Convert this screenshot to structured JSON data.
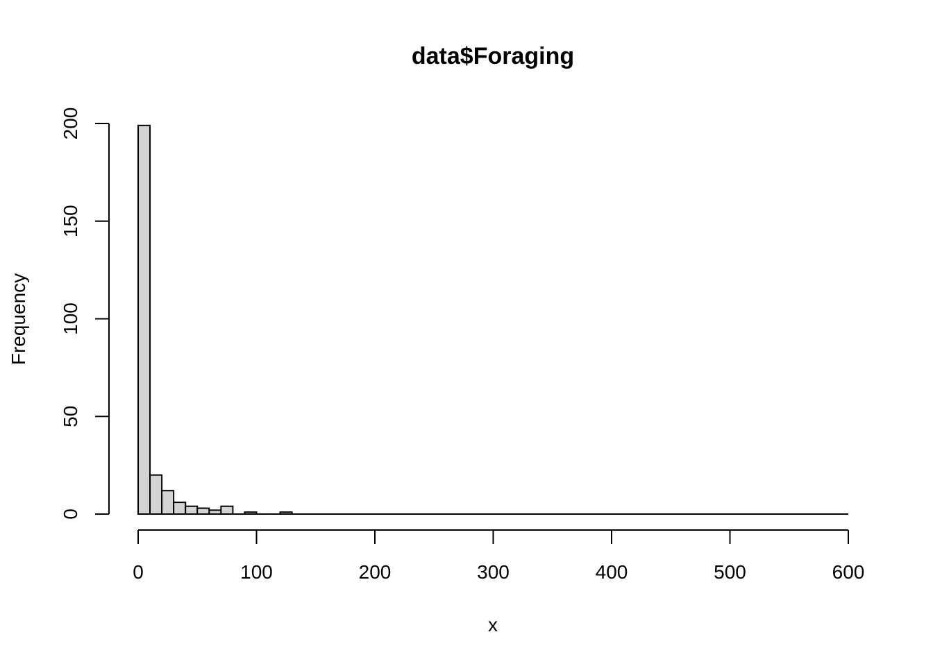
{
  "chart_data": {
    "type": "bar",
    "title": "data$Foraging",
    "xlabel": "x",
    "ylabel": "Frequency",
    "xlim": [
      0,
      600
    ],
    "ylim": [
      0,
      200
    ],
    "x_ticks": [
      0,
      100,
      200,
      300,
      400,
      500,
      600
    ],
    "y_ticks": [
      0,
      50,
      100,
      150,
      200
    ],
    "bin_width": 10,
    "bins": [
      {
        "start": 0,
        "end": 10,
        "count": 199
      },
      {
        "start": 10,
        "end": 20,
        "count": 20
      },
      {
        "start": 20,
        "end": 30,
        "count": 12
      },
      {
        "start": 30,
        "end": 40,
        "count": 6
      },
      {
        "start": 40,
        "end": 50,
        "count": 4
      },
      {
        "start": 50,
        "end": 60,
        "count": 3
      },
      {
        "start": 60,
        "end": 70,
        "count": 2
      },
      {
        "start": 70,
        "end": 80,
        "count": 4
      },
      {
        "start": 80,
        "end": 90,
        "count": 0
      },
      {
        "start": 90,
        "end": 100,
        "count": 1
      },
      {
        "start": 100,
        "end": 110,
        "count": 0
      },
      {
        "start": 110,
        "end": 120,
        "count": 0
      },
      {
        "start": 120,
        "end": 130,
        "count": 1
      },
      {
        "start": 130,
        "end": 600,
        "count": 0
      }
    ],
    "grid": false,
    "colors": {
      "bar_fill": "#d3d3d3",
      "bar_stroke": "#000000"
    }
  }
}
